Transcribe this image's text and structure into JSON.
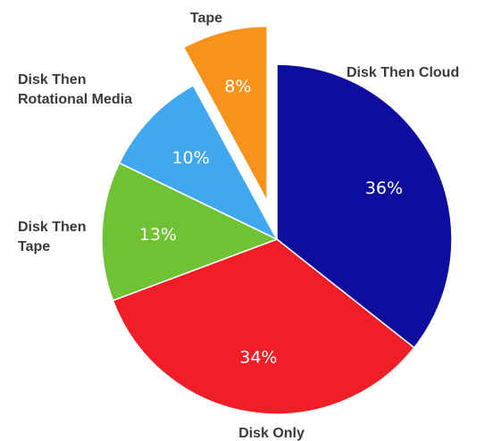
{
  "chart_data": {
    "type": "pie",
    "title": "",
    "slices": [
      {
        "label": "Disk Then Cloud",
        "value": 36,
        "value_label": "36%",
        "color": "#0e0e9e",
        "exploded": false
      },
      {
        "label": "Disk Only",
        "value": 34,
        "value_label": "34%",
        "color": "#f01e26",
        "exploded": false
      },
      {
        "label": "Disk Then Tape",
        "value": 13,
        "value_label": "13%",
        "color": "#6fc234",
        "exploded": false
      },
      {
        "label": "Disk Then Rotational Media",
        "value": 10,
        "value_label": "10%",
        "color": "#40a8ee",
        "exploded": false
      },
      {
        "label": "Tape",
        "value": 8,
        "value_label": "8%",
        "color": "#f8921a",
        "exploded": true
      }
    ],
    "start_angle": "12 o'clock",
    "direction": "clockwise"
  }
}
